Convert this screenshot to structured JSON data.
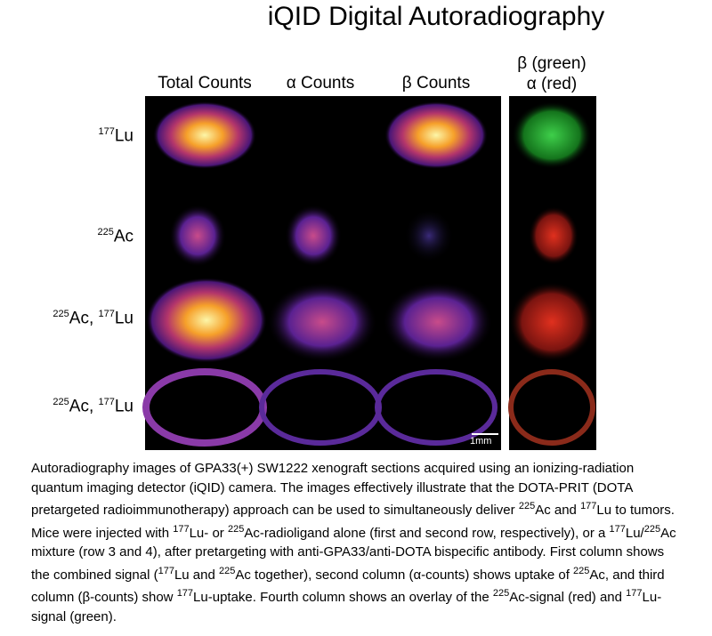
{
  "title": "iQID Digital Autoradiography",
  "columns": [
    {
      "lines": [
        "Total Counts"
      ]
    },
    {
      "lines": [
        "α Counts"
      ]
    },
    {
      "lines": [
        "β Counts"
      ]
    },
    {
      "lines": [
        "β (green)",
        "α (red)"
      ]
    }
  ],
  "rows": [
    {
      "label": [
        {
          "text": "177",
          "sup": true
        },
        {
          "text": "Lu"
        }
      ]
    },
    {
      "label": [
        {
          "text": "225",
          "sup": true
        },
        {
          "text": "Ac"
        }
      ]
    },
    {
      "label": [
        {
          "text": "225",
          "sup": true
        },
        {
          "text": "Ac, "
        },
        {
          "text": "177",
          "sup": true
        },
        {
          "text": "Lu"
        }
      ]
    },
    {
      "label": [
        {
          "text": "225",
          "sup": true
        },
        {
          "text": "Ac, "
        },
        {
          "text": "177",
          "sup": true
        },
        {
          "text": "Lu"
        }
      ]
    }
  ],
  "scale_bar": "1mm",
  "caption": [
    {
      "text": "Autoradiography images of GPA33(+) SW1222 xenograft sections acquired using an ionizing-radiation quantum imaging detector (iQID) camera. The images effectively illustrate that the DOTA-PRIT (DOTA pretargeted radioimmunotherapy) approach can be used to simultaneously deliver "
    },
    {
      "text": "225",
      "sup": true
    },
    {
      "text": "Ac and "
    },
    {
      "text": "177",
      "sup": true
    },
    {
      "text": "Lu to tumors. Mice were injected with "
    },
    {
      "text": "177",
      "sup": true
    },
    {
      "text": "Lu- or "
    },
    {
      "text": "225",
      "sup": true
    },
    {
      "text": "Ac-radioligand alone (first and second row, respectively), or a "
    },
    {
      "text": "177",
      "sup": true
    },
    {
      "text": "Lu/"
    },
    {
      "text": "225",
      "sup": true
    },
    {
      "text": "Ac mixture (row 3 and 4), after pretargeting with anti-GPA33/anti-DOTA bispecific antibody. First column shows the combined signal ("
    },
    {
      "text": "177",
      "sup": true
    },
    {
      "text": "Lu and "
    },
    {
      "text": "225",
      "sup": true
    },
    {
      "text": "Ac together), second column (α-counts) shows uptake of "
    },
    {
      "text": "225",
      "sup": true
    },
    {
      "text": "Ac, and third column (β-counts) show "
    },
    {
      "text": "177",
      "sup": true
    },
    {
      "text": "Lu-uptake. Fourth column shows an overlay of the "
    },
    {
      "text": "225",
      "sup": true
    },
    {
      "text": "Ac-signal (red) and "
    },
    {
      "text": "177",
      "sup": true
    },
    {
      "text": "Lu-signal (green)."
    }
  ]
}
